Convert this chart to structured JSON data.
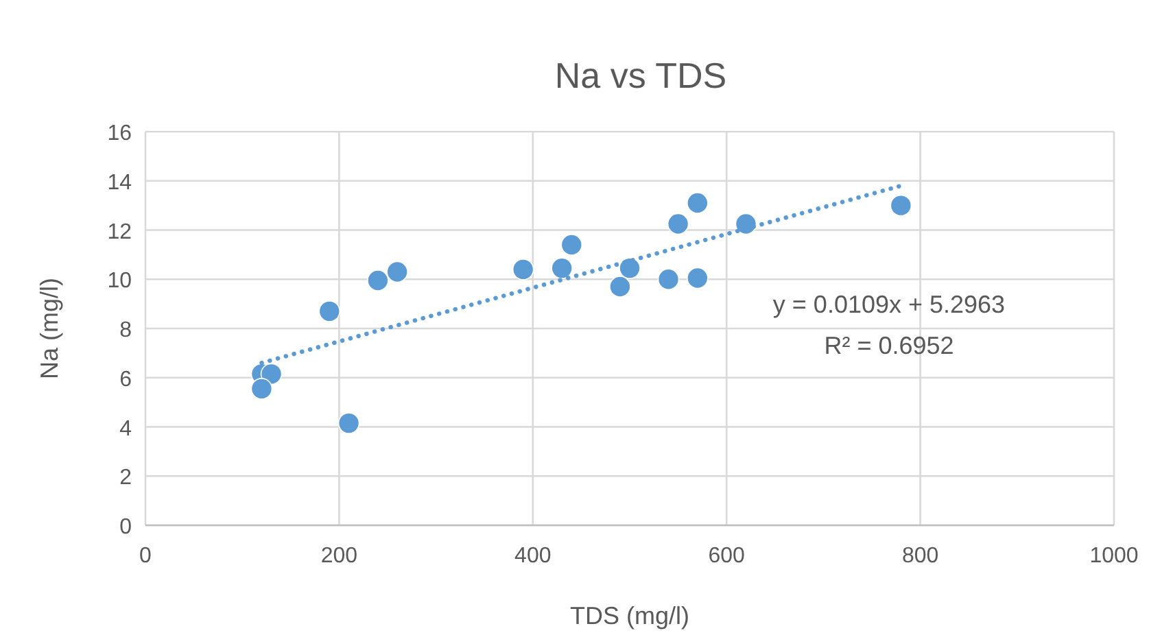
{
  "chart_data": {
    "type": "scatter",
    "title": "Na vs TDS",
    "xlabel": "TDS (mg/l)",
    "ylabel": "Na (mg/l)",
    "xlim": [
      0,
      1000
    ],
    "xticks": [
      0,
      200,
      400,
      600,
      800,
      1000
    ],
    "ylim": [
      0,
      16
    ],
    "yticks": [
      0,
      2,
      4,
      6,
      8,
      10,
      12,
      14,
      16
    ],
    "grid": true,
    "marker": "circle",
    "series": [
      {
        "color": "#5b9bd5",
        "x": [
          120,
          130,
          120,
          190,
          210,
          240,
          260,
          390,
          430,
          440,
          490,
          500,
          540,
          570,
          550,
          570,
          620,
          780
        ],
        "values": [
          6.15,
          6.15,
          5.55,
          8.7,
          4.15,
          9.95,
          10.3,
          10.4,
          10.45,
          11.4,
          9.7,
          10.45,
          10,
          10.05,
          12.25,
          13.1,
          12.25,
          13
        ]
      },
      {
        "type": "line",
        "color": "#5b9bd5",
        "line_style": "dotted",
        "marker": "none",
        "x": [
          120,
          780
        ],
        "values": [
          6.6,
          13.8
        ]
      }
    ],
    "annotations": [
      "y = 0.0109x + 5.2963",
      "R² = 0.6952"
    ]
  }
}
